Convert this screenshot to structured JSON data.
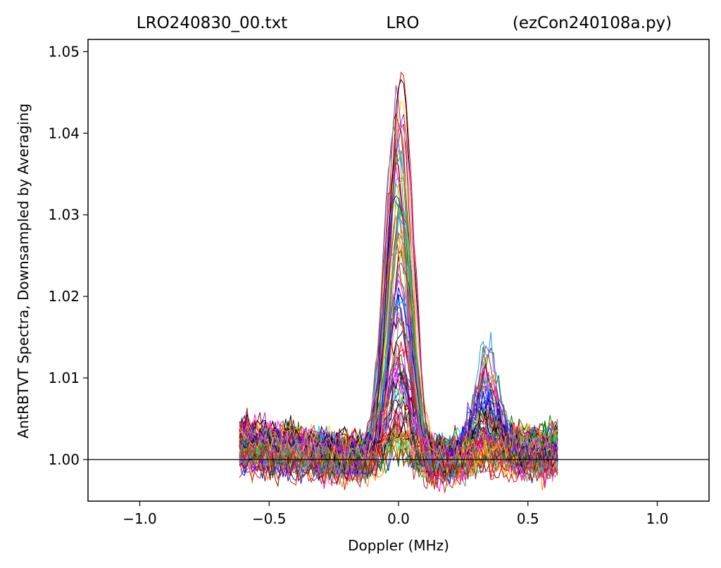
{
  "chart_data": {
    "type": "line",
    "title_parts": [
      "LRO240830_00.txt",
      "LRO",
      "(ezCon240108a.py)"
    ],
    "xlabel": "Doppler (MHz)",
    "ylabel": "AntRBTVT Spectra, Downsampled by Averaging",
    "xlim": [
      -1.2,
      1.2
    ],
    "ylim": [
      0.9949,
      1.0515
    ],
    "xticks": [
      -1.0,
      -0.5,
      0.0,
      0.5,
      1.0
    ],
    "xtick_labels": [
      "−1.0",
      "−0.5",
      "0.0",
      "0.5",
      "1.0"
    ],
    "yticks": [
      1.0,
      1.01,
      1.02,
      1.03,
      1.04,
      1.05
    ],
    "ytick_labels": [
      "1.00",
      "1.01",
      "1.02",
      "1.03",
      "1.04",
      "1.05"
    ],
    "reference_line": {
      "y": 1.0,
      "color": "#000000"
    },
    "grid": false,
    "legend": "none",
    "data_x_range": [
      -0.615,
      0.615
    ],
    "series_colors": [
      "#000000",
      "#ff0000",
      "#0000ff",
      "#008000",
      "#ffd700",
      "#ff00ff",
      "#8b0000",
      "#808080",
      "#ff8c00",
      "#9932cc",
      "#a52a2a",
      "#00ced1",
      "#ff69b4",
      "#b22222",
      "#1e90ff",
      "#32cd32"
    ],
    "main_peak": {
      "center": 0.0,
      "sigma": 0.045,
      "amplitude_min": 0.001,
      "amplitude_max": 0.048
    },
    "secondary_peak": {
      "center": 0.34,
      "sigma": 0.05,
      "amplitude_min": 0.0,
      "amplitude_max": 0.013
    },
    "baseline": {
      "low_at_left_edge": 1.0045,
      "low_at_center": 0.9985,
      "high_at_right_edge": 1.003,
      "noise": 0.0013
    },
    "series_count": 90
  }
}
